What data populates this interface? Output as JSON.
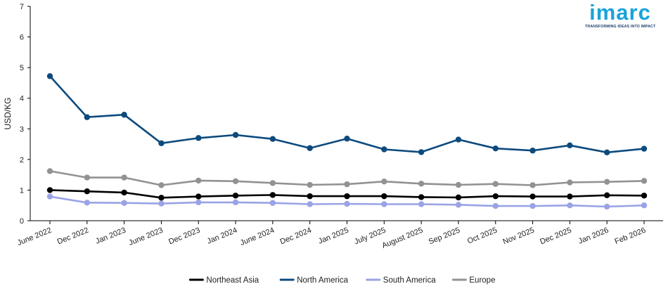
{
  "chart_data": {
    "type": "line",
    "title": "",
    "xlabel": "",
    "ylabel": "USD/KG",
    "ylim": [
      0,
      7
    ],
    "yticks": [
      0,
      1,
      2,
      3,
      4,
      5,
      6,
      7
    ],
    "grid": false,
    "legend_position": "bottom-center",
    "categories": [
      "June 2022",
      "Dec 2022",
      "Jan 2023",
      "June 2023",
      "Dec 2023",
      "Jan 2024",
      "June 2024",
      "Dec 2024",
      "Jan 2025",
      "July 2025",
      "August 2025",
      "Sep 2025",
      "Oct 2025",
      "Nov 2025",
      "Dec 2025",
      "Jan 2026",
      "Feb 2026"
    ],
    "series": [
      {
        "name": "Northeast Asia",
        "color": "#000000",
        "values": [
          1.0,
          0.96,
          0.92,
          0.75,
          0.79,
          0.82,
          0.84,
          0.8,
          0.8,
          0.8,
          0.77,
          0.76,
          0.8,
          0.79,
          0.79,
          0.83,
          0.82
        ]
      },
      {
        "name": "North America",
        "color": "#0d4a7d",
        "values": [
          4.72,
          3.38,
          3.46,
          2.53,
          2.7,
          2.8,
          2.67,
          2.37,
          2.68,
          2.33,
          2.24,
          2.65,
          2.36,
          2.29,
          2.46,
          2.23,
          2.35
        ]
      },
      {
        "name": "South America",
        "color": "#99a3e6",
        "values": [
          0.79,
          0.59,
          0.58,
          0.56,
          0.6,
          0.6,
          0.58,
          0.54,
          0.55,
          0.54,
          0.54,
          0.52,
          0.48,
          0.48,
          0.5,
          0.46,
          0.5
        ]
      },
      {
        "name": "Europe",
        "color": "#929292",
        "values": [
          1.62,
          1.41,
          1.41,
          1.16,
          1.31,
          1.29,
          1.23,
          1.17,
          1.19,
          1.28,
          1.21,
          1.17,
          1.2,
          1.16,
          1.25,
          1.27,
          1.3
        ]
      }
    ]
  },
  "logo": {
    "word": "imarc",
    "tagline": "TRANSFORMING IDEAS INTO IMPACT"
  }
}
